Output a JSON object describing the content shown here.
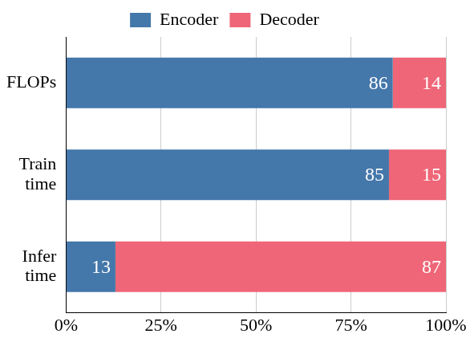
{
  "chart_data": {
    "type": "bar",
    "orientation": "horizontal",
    "stacked": true,
    "categories": [
      "FLOPs",
      "Train time",
      "Infer time"
    ],
    "series": [
      {
        "name": "Encoder",
        "color": "#4477aa",
        "values": [
          86,
          85,
          13
        ]
      },
      {
        "name": "Decoder",
        "color": "#ee6677",
        "values": [
          14,
          15,
          87
        ]
      }
    ],
    "xlim": [
      0,
      100
    ],
    "xticks": [
      {
        "value": 0,
        "label": "0%"
      },
      {
        "value": 25,
        "label": "25%"
      },
      {
        "value": 50,
        "label": "50%"
      },
      {
        "value": 75,
        "label": "75%"
      },
      {
        "value": 100,
        "label": "100%"
      }
    ],
    "grid": true,
    "legend": "top",
    "data_labels": true
  }
}
